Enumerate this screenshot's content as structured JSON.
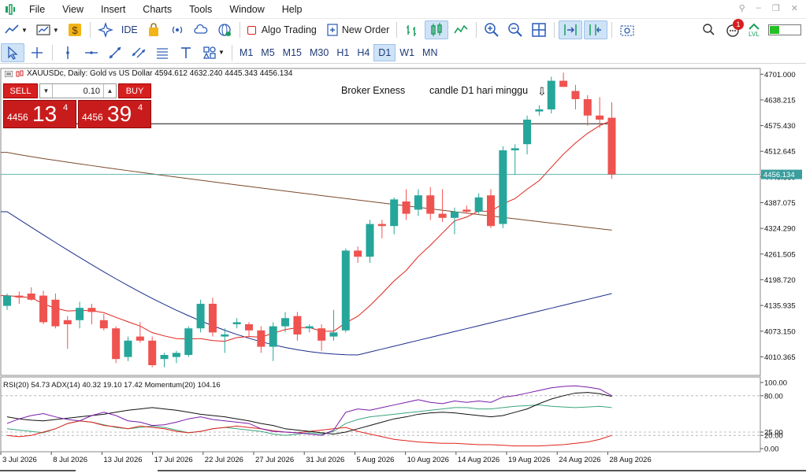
{
  "menu": {
    "items": [
      "File",
      "View",
      "Insert",
      "Charts",
      "Tools",
      "Window",
      "Help"
    ]
  },
  "toolbar": {
    "ide_label": "IDE",
    "algo_trading_label": "Algo Trading",
    "new_order_label": "New Order",
    "notification_count": "1",
    "lvl_label": "LVL"
  },
  "timeframes": [
    "M1",
    "M5",
    "M15",
    "M30",
    "H1",
    "H4",
    "D1",
    "W1",
    "MN"
  ],
  "active_timeframe": "D1",
  "chart": {
    "title": "XAUUSDc, Daily:  Gold vs US Dollar  4594.612 4632.240 4445.343 4456.134",
    "annotation_broker": "Broker Exness",
    "annotation_candle": "candle D1 hari minggu",
    "current_price_label": "4456.134",
    "indicator_label": "RSI(20) 54.73 ADX(14) 40.32 19.10 17.42 Momentum(20) 104.16"
  },
  "trade_panel": {
    "sell_label": "SELL",
    "buy_label": "BUY",
    "lot": "0.10",
    "sell_price_prefix": "4456",
    "sell_price_big": "13",
    "sell_price_sup": "4",
    "buy_price_prefix": "4456",
    "buy_price_big": "39",
    "buy_price_sup": "4"
  },
  "colors": {
    "bull": "#26a69a",
    "bear": "#ef5350",
    "ma_red": "#e0231c",
    "ma_blue": "#1a2a8a",
    "ma_brown": "#7a4a2a",
    "ma_black": "#111111",
    "price_line": "#3a9e9e"
  },
  "chart_data": {
    "type": "candlestick",
    "price_axis_ticks": [
      "4701.000",
      "4638.215",
      "4575.430",
      "4512.645",
      "4449.860",
      "4387.075",
      "4324.290",
      "4261.505",
      "4198.720",
      "4135.935",
      "4073.150",
      "4010.365"
    ],
    "time_axis_ticks": [
      "3 Jul 2026",
      "8 Jul 2026",
      "13 Jul 2026",
      "17 Jul 2026",
      "22 Jul 2026",
      "27 Jul 2026",
      "31 Jul 2026",
      "5 Aug 2026",
      "10 Aug 2026",
      "14 Aug 2026",
      "19 Aug 2026",
      "24 Aug 2026",
      "28 Aug 2026"
    ],
    "y_range": [
      3965,
      4715
    ],
    "indicator_axis_ticks": [
      "100.00",
      "80.00",
      "25.00",
      "20.00",
      "0.00"
    ],
    "candles": [
      {
        "o": 4135,
        "h": 4165,
        "l": 4125,
        "c": 4160
      },
      {
        "o": 4160,
        "h": 4170,
        "l": 4140,
        "c": 4155
      },
      {
        "o": 4165,
        "h": 4180,
        "l": 4148,
        "c": 4150
      },
      {
        "o": 4160,
        "h": 4172,
        "l": 4090,
        "c": 4095
      },
      {
        "o": 4150,
        "h": 4165,
        "l": 4080,
        "c": 4085
      },
      {
        "o": 4100,
        "h": 4110,
        "l": 4030,
        "c": 4090
      },
      {
        "o": 4100,
        "h": 4145,
        "l": 4080,
        "c": 4130
      },
      {
        "o": 4130,
        "h": 4140,
        "l": 4090,
        "c": 4120
      },
      {
        "o": 4100,
        "h": 4115,
        "l": 4075,
        "c": 4080
      },
      {
        "o": 4080,
        "h": 4085,
        "l": 3995,
        "c": 4005
      },
      {
        "o": 4010,
        "h": 4060,
        "l": 4000,
        "c": 4050
      },
      {
        "o": 4060,
        "h": 4095,
        "l": 4045,
        "c": 4050
      },
      {
        "o": 4050,
        "h": 4060,
        "l": 3985,
        "c": 3990
      },
      {
        "o": 4005,
        "h": 4020,
        "l": 3985,
        "c": 4015
      },
      {
        "o": 4010,
        "h": 4025,
        "l": 3995,
        "c": 4020
      },
      {
        "o": 4015,
        "h": 4085,
        "l": 4010,
        "c": 4080
      },
      {
        "o": 4080,
        "h": 4150,
        "l": 4070,
        "c": 4140
      },
      {
        "o": 4140,
        "h": 4155,
        "l": 4060,
        "c": 4070
      },
      {
        "o": 4060,
        "h": 4080,
        "l": 4020,
        "c": 4065
      },
      {
        "o": 4090,
        "h": 4105,
        "l": 4080,
        "c": 4095
      },
      {
        "o": 4090,
        "h": 4095,
        "l": 4060,
        "c": 4075
      },
      {
        "o": 4075,
        "h": 4085,
        "l": 4020,
        "c": 4035
      },
      {
        "o": 4035,
        "h": 4095,
        "l": 4000,
        "c": 4085
      },
      {
        "o": 4085,
        "h": 4120,
        "l": 4070,
        "c": 4105
      },
      {
        "o": 4110,
        "h": 4120,
        "l": 4050,
        "c": 4065
      },
      {
        "o": 4080,
        "h": 4090,
        "l": 4070,
        "c": 4085
      },
      {
        "o": 4080,
        "h": 4090,
        "l": 4025,
        "c": 4050
      },
      {
        "o": 4060,
        "h": 4125,
        "l": 4050,
        "c": 4070
      },
      {
        "o": 4075,
        "h": 4275,
        "l": 4070,
        "c": 4270
      },
      {
        "o": 4270,
        "h": 4280,
        "l": 4240,
        "c": 4255
      },
      {
        "o": 4255,
        "h": 4345,
        "l": 4240,
        "c": 4335
      },
      {
        "o": 4335,
        "h": 4345,
        "l": 4300,
        "c": 4330
      },
      {
        "o": 4330,
        "h": 4400,
        "l": 4310,
        "c": 4395
      },
      {
        "o": 4390,
        "h": 4420,
        "l": 4345,
        "c": 4360
      },
      {
        "o": 4370,
        "h": 4420,
        "l": 4355,
        "c": 4405
      },
      {
        "o": 4405,
        "h": 4425,
        "l": 4345,
        "c": 4360
      },
      {
        "o": 4360,
        "h": 4420,
        "l": 4340,
        "c": 4350
      },
      {
        "o": 4350,
        "h": 4375,
        "l": 4310,
        "c": 4365
      },
      {
        "o": 4370,
        "h": 4380,
        "l": 4360,
        "c": 4365
      },
      {
        "o": 4365,
        "h": 4410,
        "l": 4360,
        "c": 4400
      },
      {
        "o": 4405,
        "h": 4420,
        "l": 4325,
        "c": 4330
      },
      {
        "o": 4335,
        "h": 4525,
        "l": 4325,
        "c": 4515
      },
      {
        "o": 4515,
        "h": 4530,
        "l": 4455,
        "c": 4520
      },
      {
        "o": 4530,
        "h": 4600,
        "l": 4505,
        "c": 4590
      },
      {
        "o": 4610,
        "h": 4625,
        "l": 4600,
        "c": 4615
      },
      {
        "o": 4615,
        "h": 4695,
        "l": 4605,
        "c": 4685
      },
      {
        "o": 4685,
        "h": 4705,
        "l": 4670,
        "c": 4670
      },
      {
        "o": 4660,
        "h": 4675,
        "l": 4615,
        "c": 4640
      },
      {
        "o": 4640,
        "h": 4650,
        "l": 4575,
        "c": 4600
      },
      {
        "o": 4600,
        "h": 4645,
        "l": 4570,
        "c": 4590
      },
      {
        "o": 4594.612,
        "h": 4632.24,
        "l": 4445.343,
        "c": 4456.134
      }
    ],
    "indicators": {
      "rsi": [
        38,
        45,
        50,
        53,
        48,
        44,
        42,
        50,
        55,
        50,
        42,
        40,
        35,
        36,
        40,
        45,
        48,
        44,
        42,
        40,
        38,
        30,
        26,
        25,
        24,
        22,
        20,
        28,
        55,
        60,
        58,
        62,
        66,
        70,
        74,
        70,
        68,
        72,
        70,
        72,
        70,
        78,
        80,
        84,
        88,
        92,
        94,
        95,
        93,
        90,
        80
      ],
      "adx": [
        48,
        45,
        43,
        42,
        44,
        46,
        48,
        50,
        52,
        55,
        58,
        60,
        62,
        60,
        58,
        55,
        52,
        50,
        48,
        45,
        42,
        38,
        35,
        30,
        28,
        26,
        24,
        22,
        25,
        30,
        35,
        40,
        45,
        48,
        52,
        54,
        55,
        54,
        52,
        50,
        48,
        50,
        55,
        60,
        68,
        75,
        80,
        84,
        85,
        83,
        79
      ],
      "momentum": [
        30,
        28,
        26,
        24,
        30,
        38,
        42,
        40,
        36,
        32,
        30,
        32,
        34,
        32,
        28,
        24,
        26,
        30,
        32,
        30,
        28,
        26,
        22,
        20,
        22,
        24,
        22,
        26,
        38,
        44,
        48,
        50,
        52,
        54,
        56,
        58,
        60,
        62,
        62,
        60,
        60,
        62,
        64,
        65,
        66,
        64,
        63,
        62,
        63,
        64,
        62
      ],
      "other_red": [
        20,
        18,
        20,
        25,
        30,
        38,
        42,
        40,
        35,
        33,
        30,
        34,
        32,
        30,
        26,
        24,
        26,
        30,
        32,
        34,
        32,
        30,
        27,
        25,
        24,
        26,
        28,
        30,
        32,
        26,
        22,
        18,
        14,
        12,
        10,
        9,
        8,
        8,
        7,
        6,
        6,
        5,
        4,
        4,
        4,
        5,
        6,
        8,
        10,
        14,
        20
      ]
    }
  }
}
